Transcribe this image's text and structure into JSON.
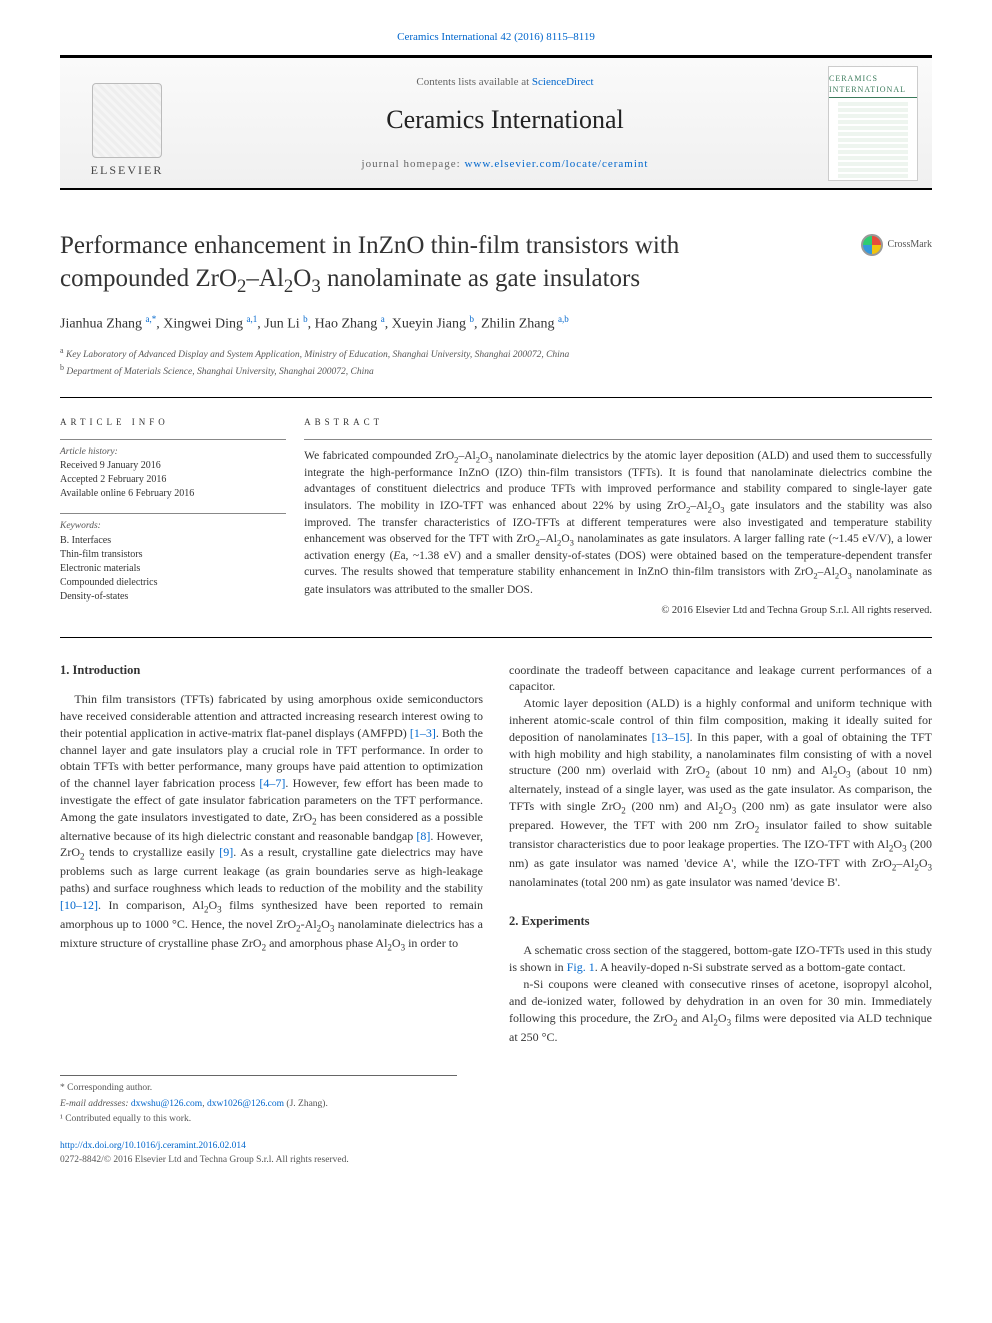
{
  "citation_line": "Ceramics International 42 (2016) 8115–8119",
  "header": {
    "contents_lists_prefix": "Contents lists available at ",
    "contents_lists_link": "ScienceDirect",
    "journal_name": "Ceramics International",
    "homepage_prefix": "journal homepage: ",
    "homepage_link": "www.elsevier.com/locate/ceramint",
    "elsevier_label": "ELSEVIER",
    "cover_label": "CERAMICS INTERNATIONAL"
  },
  "crossmark_label": "CrossMark",
  "title_html": "Performance enhancement in InZnO thin-film transistors with compounded ZrO<sub>2</sub>–Al<sub>2</sub>O<sub>3</sub> nanolaminate as gate insulators",
  "authors_html": "Jianhua Zhang <span class='sup'>a,*</span>, Xingwei Ding <span class='sup'>a,1</span>, Jun Li <span class='sup'>b</span>, Hao Zhang <span class='sup'>a</span>, Xueyin Jiang <span class='sup'>b</span>, Zhilin Zhang <span class='sup'>a,b</span>",
  "affiliations": [
    {
      "sup": "a",
      "text": "Key Laboratory of Advanced Display and System Application, Ministry of Education, Shanghai University, Shanghai 200072, China"
    },
    {
      "sup": "b",
      "text": "Department of Materials Science, Shanghai University, Shanghai 200072, China"
    }
  ],
  "article_info": {
    "label": "ARTICLE INFO",
    "history_label": "Article history:",
    "history": [
      "Received 9 January 2016",
      "Accepted 2 February 2016",
      "Available online 6 February 2016"
    ],
    "keywords_label": "Keywords:",
    "keywords": [
      "B. Interfaces",
      "Thin-film transistors",
      "Electronic materials",
      "Compounded dielectrics",
      "Density-of-states"
    ]
  },
  "abstract": {
    "label": "ABSTRACT",
    "text_html": "We fabricated compounded ZrO<sub>2</sub>–Al<sub>2</sub>O<sub>3</sub> nanolaminate dielectrics by the atomic layer deposition (ALD) and used them to successfully integrate the high-performance InZnO (IZO) thin-film transistors (TFTs). It is found that nanolaminate dielectrics combine the advantages of constituent dielectrics and produce TFTs with improved performance and stability compared to single-layer gate insulators. The mobility in IZO-TFT was enhanced about 22% by using ZrO<sub>2</sub>–Al<sub>2</sub>O<sub>3</sub> gate insulators and the stability was also improved. The transfer characteristics of IZO-TFTs at different temperatures were also investigated and temperature stability enhancement was observed for the TFT with ZrO<sub>2</sub>–Al<sub>2</sub>O<sub>3</sub> nanolaminates as gate insulators. A larger falling rate (~1.45 eV/V), a lower activation energy (<i>E</i>a, ~1.38 eV) and a smaller density-of-states (DOS) were obtained based on the temperature-dependent transfer curves. The results showed that temperature stability enhancement in InZnO thin-film transistors with ZrO<sub>2</sub>–Al<sub>2</sub>O<sub>3</sub> nanolaminate as gate insulators was attributed to the smaller DOS.",
    "copyright": "© 2016 Elsevier Ltd and Techna Group S.r.l. All rights reserved."
  },
  "body": {
    "intro_heading": "1. Introduction",
    "exp_heading": "2. Experiments",
    "left_paras_html": [
      "Thin film transistors (TFTs) fabricated by using amorphous oxide semiconductors have received considerable attention and attracted increasing research interest owing to their potential application in active-matrix flat-panel displays (AMFPD) <span class='ref'>[1–3]</span>. Both the channel layer and gate insulators play a crucial role in TFT performance. In order to obtain TFTs with better performance, many groups have paid attention to optimization of the channel layer fabrication process <span class='ref'>[4–7]</span>. However, few effort has been made to investigate the effect of gate insulator fabrication parameters on the TFT performance. Among the gate insulators investigated to date, ZrO<sub>2</sub> has been considered as a possible alternative because of its high dielectric constant and reasonable bandgap <span class='ref'>[8]</span>. However, ZrO<sub>2</sub> tends to crystallize easily <span class='ref'>[9]</span>. As a result, crystalline gate dielectrics may have problems such as large current leakage (as grain boundaries serve as high-leakage paths) and surface roughness which leads to reduction of the mobility and the stability <span class='ref'>[10–12]</span>. In comparison, Al<sub>2</sub>O<sub>3</sub> films synthesized have been reported to remain amorphous up to 1000 °C. Hence, the novel ZrO<sub>2</sub>-Al<sub>2</sub>O<sub>3</sub> nanolaminate dielectrics has a mixture structure of crystalline phase ZrO<sub>2</sub> and amorphous phase Al<sub>2</sub>O<sub>3</sub> in order to"
    ],
    "right_paras_html": [
      "coordinate the tradeoff between capacitance and leakage current performances of a capacitor.",
      "Atomic layer deposition (ALD) is a highly conformal and uniform technique with inherent atomic-scale control of thin film composition, making it ideally suited for deposition of nanolaminates <span class='ref'>[13–15]</span>. In this paper, with a goal of obtaining the TFT with high mobility and high stability, a nanolaminates film consisting of with a novel structure (200 nm) overlaid with ZrO<sub>2</sub> (about 10 nm) and Al<sub>2</sub>O<sub>3</sub> (about 10 nm) alternately, instead of a single layer, was used as the gate insulator. As comparison, the TFTs with single ZrO<sub>2</sub> (200 nm) and Al<sub>2</sub>O<sub>3</sub> (200 nm) as gate insulator were also prepared. However, the TFT with 200 nm ZrO<sub>2</sub> insulator failed to show suitable transistor characteristics due to poor leakage properties. The IZO-TFT with Al<sub>2</sub>O<sub>3</sub> (200 nm) as gate insulator was named 'device A', while the IZO-TFT with ZrO<sub>2</sub>–Al<sub>2</sub>O<sub>3</sub> nanolaminates (total 200 nm) as gate insulator was named 'device B'.",
      "A schematic cross section of the staggered, bottom-gate IZO-TFTs used in this study is shown in <span class='ref'>Fig. 1</span>. A heavily-doped n-Si substrate served as a bottom-gate contact.",
      "n-Si coupons were cleaned with consecutive rinses of acetone, isopropyl alcohol, and de-ionized water, followed by dehydration in an oven for 30 min. Immediately following this procedure, the ZrO<sub>2</sub> and Al<sub>2</sub>O<sub>3</sub> films were deposited via ALD technique at 250 °C."
    ]
  },
  "footnotes": {
    "corr": "* Corresponding author.",
    "email_prefix": "E-mail addresses: ",
    "emails_html": "<a>dxwshu@126.com</a>, <a>dxw1026@126.com</a> (J. Zhang).",
    "contrib": "¹ Contributed equally to this work."
  },
  "bottom": {
    "doi": "http://dx.doi.org/10.1016/j.ceramint.2016.02.014",
    "issn_line": "0272-8842/© 2016 Elsevier Ltd and Techna Group S.r.l. All rights reserved."
  },
  "colors": {
    "link": "#0066cc",
    "text": "#333333",
    "rule": "#000000",
    "muted": "#555555"
  },
  "fontsizes_pt": {
    "title": 25,
    "journal": 26,
    "authors": 14,
    "body": 12,
    "abstract": 11.5,
    "info": 10,
    "affil": 9.5,
    "footnote": 9.5,
    "citation": 11
  }
}
